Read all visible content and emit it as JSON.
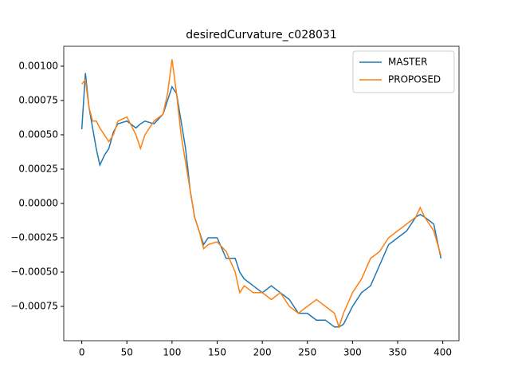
{
  "chart_data": {
    "type": "line",
    "title": "desiredCurvature_c028031",
    "x": [
      0,
      4,
      8,
      12,
      16,
      20,
      25,
      30,
      35,
      40,
      50,
      60,
      65,
      70,
      80,
      90,
      95,
      100,
      105,
      110,
      115,
      120,
      125,
      130,
      135,
      140,
      150,
      160,
      170,
      175,
      180,
      190,
      200,
      210,
      220,
      230,
      240,
      250,
      260,
      270,
      280,
      285,
      290,
      300,
      310,
      320,
      330,
      340,
      350,
      360,
      370,
      375,
      380,
      390,
      398
    ],
    "series": [
      {
        "name": "MASTER",
        "color": "#1f77b4",
        "values": [
          0.00054,
          0.00095,
          0.0007,
          0.00055,
          0.0004,
          0.00028,
          0.00035,
          0.0004,
          0.00052,
          0.00058,
          0.0006,
          0.00055,
          0.00058,
          0.0006,
          0.00058,
          0.00065,
          0.00075,
          0.00085,
          0.0008,
          0.0006,
          0.0004,
          0.0001,
          -0.0001,
          -0.0002,
          -0.0003,
          -0.00025,
          -0.00025,
          -0.0004,
          -0.0004,
          -0.0005,
          -0.00055,
          -0.0006,
          -0.00065,
          -0.0006,
          -0.00065,
          -0.0007,
          -0.0008,
          -0.0008,
          -0.00085,
          -0.00085,
          -0.0009,
          -0.0009,
          -0.00088,
          -0.00075,
          -0.00065,
          -0.0006,
          -0.00045,
          -0.0003,
          -0.00025,
          -0.0002,
          -0.0001,
          -8e-05,
          -0.0001,
          -0.00015,
          -0.0004
        ]
      },
      {
        "name": "PROPOSED",
        "color": "#ff7f0e",
        "values": [
          0.00087,
          0.0009,
          0.0007,
          0.0006,
          0.0006,
          0.00055,
          0.0005,
          0.00045,
          0.0005,
          0.0006,
          0.00063,
          0.0005,
          0.0004,
          0.0005,
          0.0006,
          0.00065,
          0.0008,
          0.00105,
          0.0008,
          0.0005,
          0.0003,
          0.0001,
          -0.0001,
          -0.0002,
          -0.00033,
          -0.0003,
          -0.00028,
          -0.00035,
          -0.0005,
          -0.00065,
          -0.0006,
          -0.00065,
          -0.00065,
          -0.0007,
          -0.00065,
          -0.00075,
          -0.0008,
          -0.00075,
          -0.0007,
          -0.00075,
          -0.0008,
          -0.0009,
          -0.0008,
          -0.00065,
          -0.00055,
          -0.0004,
          -0.00035,
          -0.00025,
          -0.0002,
          -0.00015,
          -0.0001,
          -3e-05,
          -0.0001,
          -0.0002,
          -0.00038
        ]
      }
    ],
    "xlim": [
      -20,
      418
    ],
    "xticks": [
      0,
      50,
      100,
      150,
      200,
      250,
      300,
      350,
      400
    ],
    "ylim": [
      -0.001,
      0.001145
    ],
    "yticks": [
      {
        "value": -0.00075,
        "label": "−0.00075"
      },
      {
        "value": -0.0005,
        "label": "−0.00050"
      },
      {
        "value": -0.00025,
        "label": "−0.00025"
      },
      {
        "value": 0,
        "label": "0.00000"
      },
      {
        "value": 0.00025,
        "label": "0.00025"
      },
      {
        "value": 0.0005,
        "label": "0.00050"
      },
      {
        "value": 0.00075,
        "label": "0.00075"
      },
      {
        "value": 0.001,
        "label": "0.00100"
      }
    ],
    "legend": "upper right"
  }
}
